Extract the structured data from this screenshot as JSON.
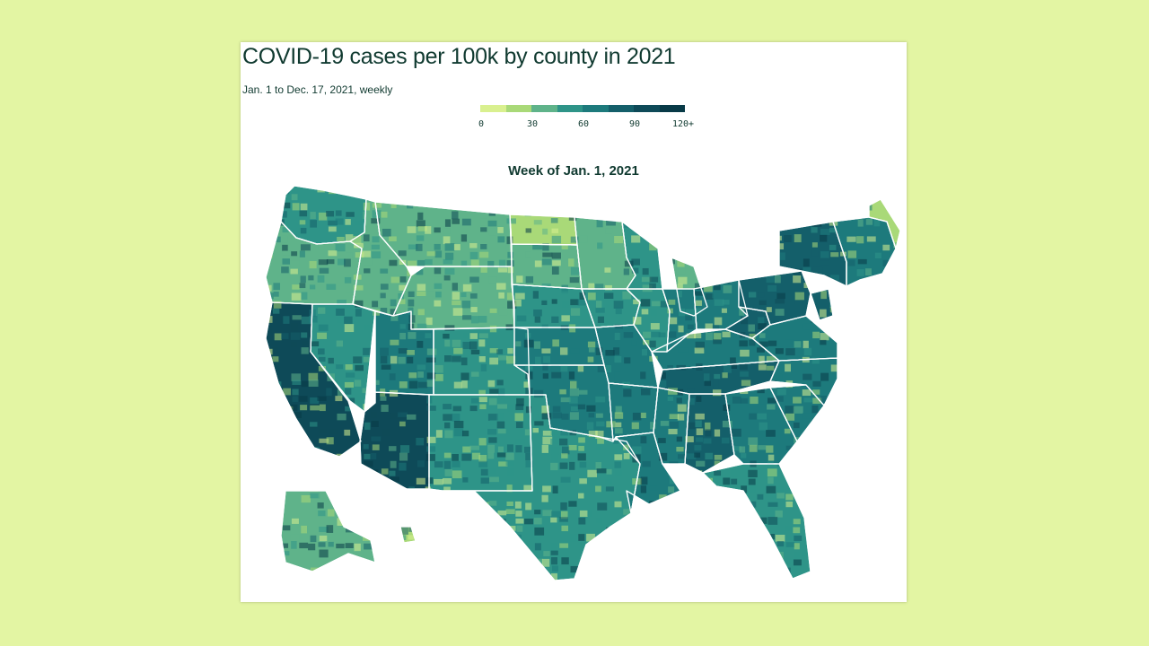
{
  "title": "COVID-19 cases per 100k by county in 2021",
  "subtitle": "Jan. 1 to Dec. 17, 2021, weekly",
  "week_label": "Week of Jan. 1, 2021",
  "legend": {
    "ticks": [
      "0",
      "30",
      "60",
      "90",
      "120+"
    ],
    "colors": [
      "#d9f08f",
      "#a9d978",
      "#5fb38a",
      "#2e9488",
      "#1d7a7c",
      "#145f6a",
      "#0e4a58",
      "#083a47"
    ]
  },
  "colors": {
    "page_background": "#e3f5a3",
    "card_background": "#ffffff",
    "text": "#103a30",
    "state_border": "#ffffff"
  },
  "regions": [
    {
      "name": "Washington",
      "level": 3
    },
    {
      "name": "Oregon",
      "level": 2
    },
    {
      "name": "California",
      "level": 6
    },
    {
      "name": "Nevada",
      "level": 3
    },
    {
      "name": "Arizona",
      "level": 6
    },
    {
      "name": "Idaho",
      "level": 2
    },
    {
      "name": "Utah",
      "level": 4
    },
    {
      "name": "Montana",
      "level": 2
    },
    {
      "name": "Wyoming",
      "level": 2
    },
    {
      "name": "Colorado",
      "level": 3
    },
    {
      "name": "New Mexico",
      "level": 3
    },
    {
      "name": "Texas",
      "level": 3
    },
    {
      "name": "Oklahoma",
      "level": 4
    },
    {
      "name": "Kansas",
      "level": 4
    },
    {
      "name": "Nebraska",
      "level": 3
    },
    {
      "name": "South Dakota",
      "level": 2
    },
    {
      "name": "North Dakota",
      "level": 1
    },
    {
      "name": "Minnesota",
      "level": 2
    },
    {
      "name": "Iowa",
      "level": 3
    },
    {
      "name": "Missouri",
      "level": 4
    },
    {
      "name": "Arkansas",
      "level": 4
    },
    {
      "name": "Louisiana",
      "level": 4
    },
    {
      "name": "Mississippi",
      "level": 4
    },
    {
      "name": "Alabama",
      "level": 5
    },
    {
      "name": "Tennessee",
      "level": 5
    },
    {
      "name": "Kentucky",
      "level": 4
    },
    {
      "name": "Illinois",
      "level": 3
    },
    {
      "name": "Wisconsin",
      "level": 3
    },
    {
      "name": "Michigan",
      "level": 2
    },
    {
      "name": "Indiana",
      "level": 4
    },
    {
      "name": "Ohio",
      "level": 4
    },
    {
      "name": "West Virginia",
      "level": 5
    },
    {
      "name": "Georgia",
      "level": 4
    },
    {
      "name": "Florida",
      "level": 3
    },
    {
      "name": "South Carolina",
      "level": 4
    },
    {
      "name": "North Carolina",
      "level": 4
    },
    {
      "name": "Virginia",
      "level": 4
    },
    {
      "name": "Pennsylvania",
      "level": 5
    },
    {
      "name": "New York",
      "level": 5
    },
    {
      "name": "New Jersey",
      "level": 5
    },
    {
      "name": "New England",
      "level": 4
    },
    {
      "name": "Maine",
      "level": 1
    },
    {
      "name": "Alaska",
      "level": 2
    },
    {
      "name": "Hawaii",
      "level": 1
    }
  ]
}
